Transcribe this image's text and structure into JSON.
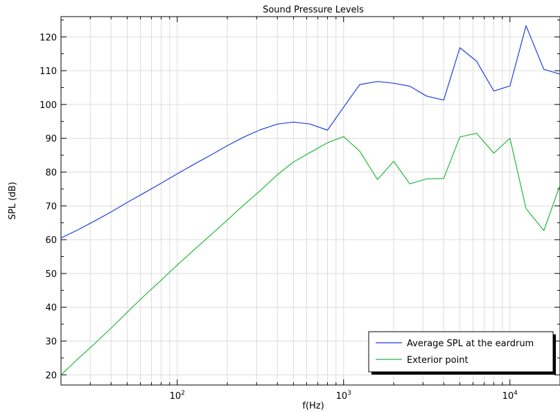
{
  "chart_data": {
    "type": "line",
    "title": "Sound Pressure Levels",
    "xlabel": "f(Hz)",
    "ylabel": "SPL (dB)",
    "xscale": "log",
    "xlim": [
      20,
      20000
    ],
    "ylim": [
      17,
      126
    ],
    "grid": true,
    "legend_position": "bottom-right",
    "x_ticks": [
      {
        "value": 100,
        "base": "10",
        "exp": "2"
      },
      {
        "value": 1000,
        "base": "10",
        "exp": "3"
      },
      {
        "value": 10000,
        "base": "10",
        "exp": "4"
      }
    ],
    "y_ticks": [
      20,
      30,
      40,
      50,
      60,
      70,
      80,
      90,
      100,
      110,
      120
    ],
    "x": [
      20,
      25,
      31.5,
      40,
      50,
      63,
      80,
      100,
      125,
      160,
      200,
      250,
      315,
      400,
      500,
      630,
      800,
      1000,
      1250,
      1600,
      2000,
      2500,
      3150,
      4000,
      5000,
      6300,
      8000,
      10000,
      12500,
      16000,
      20000
    ],
    "series": [
      {
        "name": "Average SPL at the eardrum",
        "color": "#1f3fe0",
        "values": [
          60.5,
          62.8,
          65.4,
          68.2,
          71.0,
          73.8,
          76.7,
          79.5,
          82.2,
          85.1,
          87.8,
          90.3,
          92.5,
          94.2,
          94.8,
          94.2,
          92.4,
          99.2,
          105.9,
          106.8,
          106.3,
          105.4,
          102.5,
          101.3,
          116.8,
          112.8,
          104.0,
          105.5,
          123.3,
          110.4,
          109.0
        ]
      },
      {
        "name": "Exterior point",
        "color": "#22b83a",
        "values": [
          20.0,
          24.5,
          29.0,
          33.8,
          38.5,
          43.3,
          48.0,
          52.5,
          56.8,
          61.5,
          65.8,
          70.2,
          74.5,
          79.2,
          83.0,
          85.8,
          88.7,
          90.5,
          86.2,
          77.8,
          83.2,
          76.5,
          78.0,
          78.1,
          90.4,
          91.5,
          85.6,
          90.0,
          69.2,
          62.7,
          76.1
        ]
      }
    ]
  }
}
